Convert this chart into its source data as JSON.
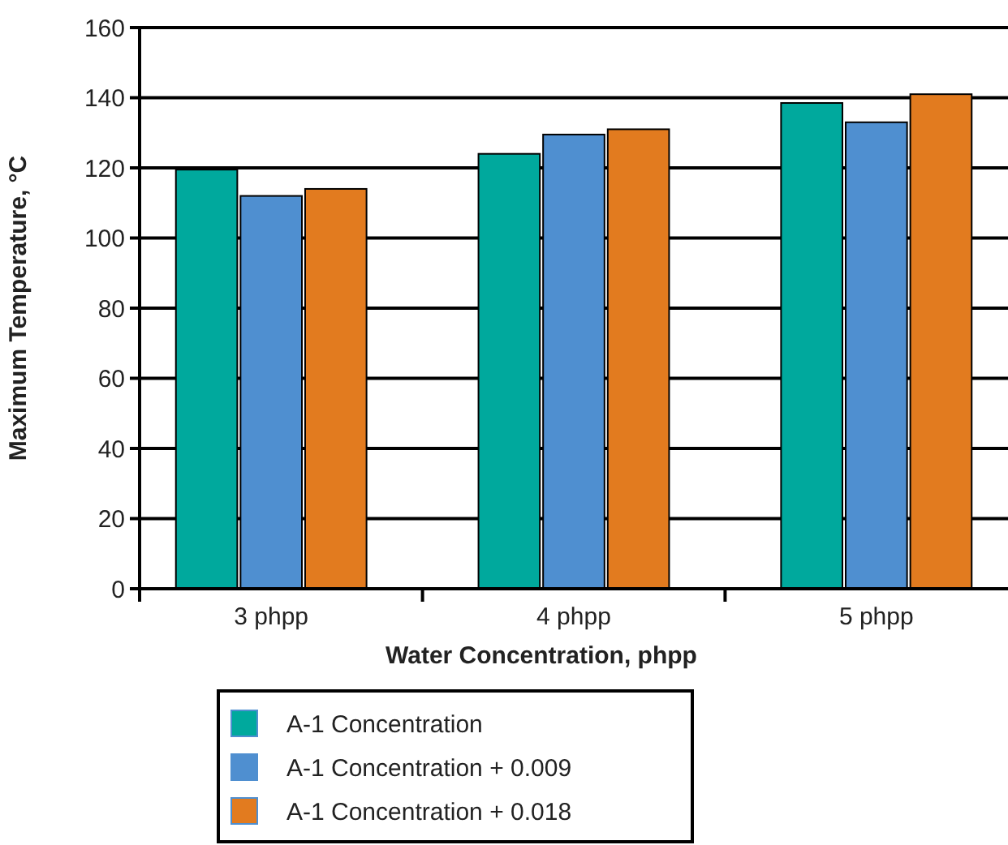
{
  "chart_data": {
    "type": "bar",
    "xlabel": "Water Concentration, phpp",
    "ylabel": "Maximum Temperature, °C",
    "categories": [
      "3 phpp",
      "4 phpp",
      "5 phpp"
    ],
    "series": [
      {
        "name": "A-1 Concentration",
        "color": "#00a99d",
        "values": [
          119.5,
          124,
          138.5
        ]
      },
      {
        "name": "A-1 Concentration + 0.009",
        "color": "#4f8fd0",
        "values": [
          112,
          129.5,
          133
        ]
      },
      {
        "name": "A-1 Concentration + 0.018",
        "color": "#e27b1f",
        "values": [
          114,
          131,
          141
        ]
      }
    ],
    "ylim": [
      0,
      160
    ],
    "yticks": [
      0,
      20,
      40,
      60,
      80,
      100,
      120,
      140,
      160
    ],
    "grid": "y",
    "legend": "bottom"
  }
}
